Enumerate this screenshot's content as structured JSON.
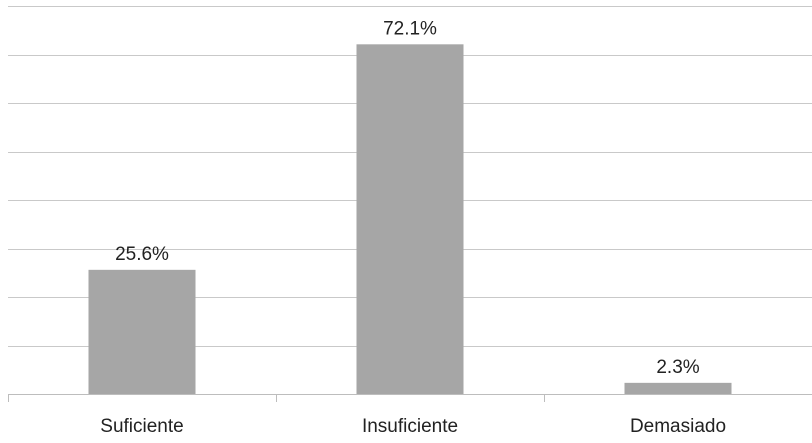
{
  "chart_data": {
    "type": "bar",
    "categories": [
      "Suficiente",
      "Insuficiente",
      "Demasiado"
    ],
    "values": [
      25.6,
      72.1,
      2.3
    ],
    "data_labels": [
      "25.6%",
      "72.1%",
      "2.3%"
    ],
    "ylim": [
      0,
      80
    ],
    "grid": true,
    "bar_color": "#a6a6a6",
    "grid_color": "#c9c9c9"
  }
}
